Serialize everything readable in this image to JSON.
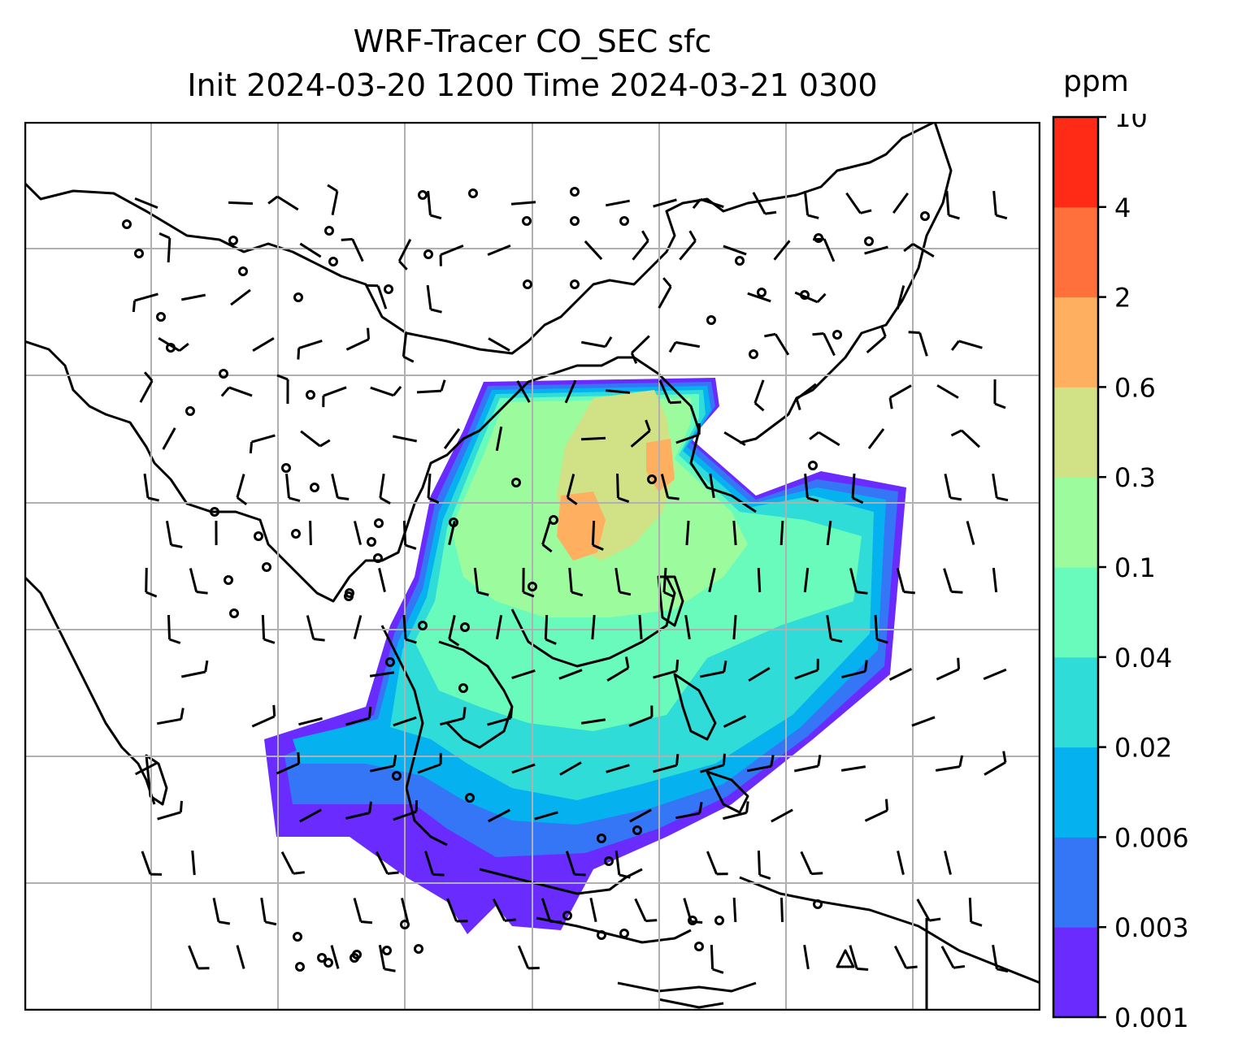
{
  "title": {
    "line1": "WRF-Tracer CO_SEC sfc",
    "line2": "Init 2024-03-20 1200 Time 2024-03-21 0300"
  },
  "colorbar": {
    "unit": "ppm",
    "ticks": [
      "0.001",
      "0.003",
      "0.006",
      "0.02",
      "0.04",
      "0.1",
      "0.3",
      "0.6",
      "2",
      "4",
      "10"
    ],
    "colors": [
      "#6a2bff",
      "#3476f6",
      "#05b2ef",
      "#2fdcd8",
      "#69fbbc",
      "#9cfb9c",
      "#d0e285",
      "#ffaf60",
      "#ff703c",
      "#ff2b16"
    ]
  },
  "map": {
    "gridlines": true,
    "gridline_color": "#b0b0b0",
    "features": [
      "coastlines",
      "wind-barbs",
      "calm-wind-circles",
      "tracer-concentration-field"
    ]
  }
}
